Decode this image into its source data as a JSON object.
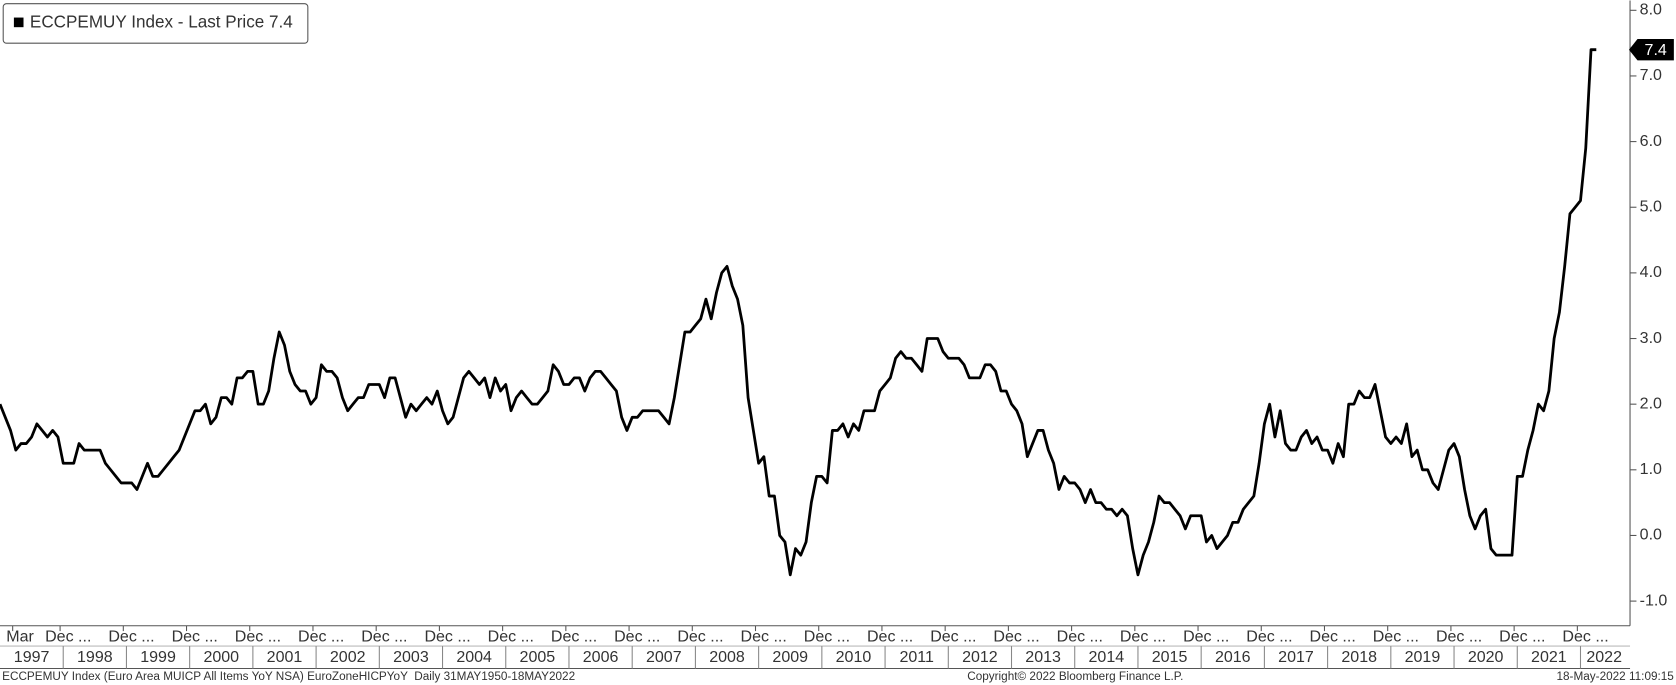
{
  "chart_data": {
    "type": "line",
    "series": [
      {
        "name": "ECCPEMUY Index - Last Price 7.4",
        "color": "#000000",
        "x": [
          "1997-01",
          "1997-02",
          "1997-03",
          "1997-04",
          "1997-05",
          "1997-06",
          "1997-07",
          "1997-08",
          "1997-09",
          "1997-10",
          "1997-11",
          "1997-12",
          "1998-01",
          "1998-02",
          "1998-03",
          "1998-04",
          "1998-05",
          "1998-06",
          "1998-07",
          "1998-08",
          "1998-09",
          "1998-10",
          "1998-11",
          "1998-12",
          "1999-01",
          "1999-02",
          "1999-03",
          "1999-04",
          "1999-05",
          "1999-06",
          "1999-07",
          "1999-08",
          "1999-09",
          "1999-10",
          "1999-11",
          "1999-12",
          "2000-01",
          "2000-02",
          "2000-03",
          "2000-04",
          "2000-05",
          "2000-06",
          "2000-07",
          "2000-08",
          "2000-09",
          "2000-10",
          "2000-11",
          "2000-12",
          "2001-01",
          "2001-02",
          "2001-03",
          "2001-04",
          "2001-05",
          "2001-06",
          "2001-07",
          "2001-08",
          "2001-09",
          "2001-10",
          "2001-11",
          "2001-12",
          "2002-01",
          "2002-02",
          "2002-03",
          "2002-04",
          "2002-05",
          "2002-06",
          "2002-07",
          "2002-08",
          "2002-09",
          "2002-10",
          "2002-11",
          "2002-12",
          "2003-01",
          "2003-02",
          "2003-03",
          "2003-04",
          "2003-05",
          "2003-06",
          "2003-07",
          "2003-08",
          "2003-09",
          "2003-10",
          "2003-11",
          "2003-12",
          "2004-01",
          "2004-02",
          "2004-03",
          "2004-04",
          "2004-05",
          "2004-06",
          "2004-07",
          "2004-08",
          "2004-09",
          "2004-10",
          "2004-11",
          "2004-12",
          "2005-01",
          "2005-02",
          "2005-03",
          "2005-04",
          "2005-05",
          "2005-06",
          "2005-07",
          "2005-08",
          "2005-09",
          "2005-10",
          "2005-11",
          "2005-12",
          "2006-01",
          "2006-02",
          "2006-03",
          "2006-04",
          "2006-05",
          "2006-06",
          "2006-07",
          "2006-08",
          "2006-09",
          "2006-10",
          "2006-11",
          "2006-12",
          "2007-01",
          "2007-02",
          "2007-03",
          "2007-04",
          "2007-05",
          "2007-06",
          "2007-07",
          "2007-08",
          "2007-09",
          "2007-10",
          "2007-11",
          "2007-12",
          "2008-01",
          "2008-02",
          "2008-03",
          "2008-04",
          "2008-05",
          "2008-06",
          "2008-07",
          "2008-08",
          "2008-09",
          "2008-10",
          "2008-11",
          "2008-12",
          "2009-01",
          "2009-02",
          "2009-03",
          "2009-04",
          "2009-05",
          "2009-06",
          "2009-07",
          "2009-08",
          "2009-09",
          "2009-10",
          "2009-11",
          "2009-12",
          "2010-01",
          "2010-02",
          "2010-03",
          "2010-04",
          "2010-05",
          "2010-06",
          "2010-07",
          "2010-08",
          "2010-09",
          "2010-10",
          "2010-11",
          "2010-12",
          "2011-01",
          "2011-02",
          "2011-03",
          "2011-04",
          "2011-05",
          "2011-06",
          "2011-07",
          "2011-08",
          "2011-09",
          "2011-10",
          "2011-11",
          "2011-12",
          "2012-01",
          "2012-02",
          "2012-03",
          "2012-04",
          "2012-05",
          "2012-06",
          "2012-07",
          "2012-08",
          "2012-09",
          "2012-10",
          "2012-11",
          "2012-12",
          "2013-01",
          "2013-02",
          "2013-03",
          "2013-04",
          "2013-05",
          "2013-06",
          "2013-07",
          "2013-08",
          "2013-09",
          "2013-10",
          "2013-11",
          "2013-12",
          "2014-01",
          "2014-02",
          "2014-03",
          "2014-04",
          "2014-05",
          "2014-06",
          "2014-07",
          "2014-08",
          "2014-09",
          "2014-10",
          "2014-11",
          "2014-12",
          "2015-01",
          "2015-02",
          "2015-03",
          "2015-04",
          "2015-05",
          "2015-06",
          "2015-07",
          "2015-08",
          "2015-09",
          "2015-10",
          "2015-11",
          "2015-12",
          "2016-01",
          "2016-02",
          "2016-03",
          "2016-04",
          "2016-05",
          "2016-06",
          "2016-07",
          "2016-08",
          "2016-09",
          "2016-10",
          "2016-11",
          "2016-12",
          "2017-01",
          "2017-02",
          "2017-03",
          "2017-04",
          "2017-05",
          "2017-06",
          "2017-07",
          "2017-08",
          "2017-09",
          "2017-10",
          "2017-11",
          "2017-12",
          "2018-01",
          "2018-02",
          "2018-03",
          "2018-04",
          "2018-05",
          "2018-06",
          "2018-07",
          "2018-08",
          "2018-09",
          "2018-10",
          "2018-11",
          "2018-12",
          "2019-01",
          "2019-02",
          "2019-03",
          "2019-04",
          "2019-05",
          "2019-06",
          "2019-07",
          "2019-08",
          "2019-09",
          "2019-10",
          "2019-11",
          "2019-12",
          "2020-01",
          "2020-02",
          "2020-03",
          "2020-04",
          "2020-05",
          "2020-06",
          "2020-07",
          "2020-08",
          "2020-09",
          "2020-10",
          "2020-11",
          "2020-12",
          "2021-01",
          "2021-02",
          "2021-03",
          "2021-04",
          "2021-05",
          "2021-06",
          "2021-07",
          "2021-08",
          "2021-09",
          "2021-10",
          "2021-11",
          "2021-12",
          "2022-01",
          "2022-02",
          "2022-03",
          "2022-04"
        ],
        "values": [
          2.0,
          1.8,
          1.6,
          1.3,
          1.4,
          1.4,
          1.5,
          1.7,
          1.6,
          1.5,
          1.6,
          1.5,
          1.1,
          1.1,
          1.1,
          1.4,
          1.3,
          1.3,
          1.3,
          1.3,
          1.1,
          1.0,
          0.9,
          0.8,
          0.8,
          0.8,
          0.7,
          0.9,
          1.1,
          0.9,
          0.9,
          1.0,
          1.1,
          1.2,
          1.3,
          1.5,
          1.7,
          1.9,
          1.9,
          2.0,
          1.7,
          1.8,
          2.1,
          2.1,
          2.0,
          2.4,
          2.4,
          2.5,
          2.5,
          2.0,
          2.0,
          2.2,
          2.7,
          3.1,
          2.9,
          2.5,
          2.3,
          2.2,
          2.2,
          2.0,
          2.1,
          2.6,
          2.5,
          2.5,
          2.4,
          2.1,
          1.9,
          2.0,
          2.1,
          2.1,
          2.3,
          2.3,
          2.3,
          2.1,
          2.4,
          2.4,
          2.1,
          1.8,
          2.0,
          1.9,
          2.0,
          2.1,
          2.0,
          2.2,
          1.9,
          1.7,
          1.8,
          2.1,
          2.4,
          2.5,
          2.4,
          2.3,
          2.4,
          2.1,
          2.4,
          2.2,
          2.3,
          1.9,
          2.1,
          2.2,
          2.1,
          2.0,
          2.0,
          2.1,
          2.2,
          2.6,
          2.5,
          2.3,
          2.3,
          2.4,
          2.4,
          2.2,
          2.4,
          2.5,
          2.5,
          2.4,
          2.3,
          2.2,
          1.8,
          1.6,
          1.8,
          1.8,
          1.9,
          1.9,
          1.9,
          1.9,
          1.8,
          1.7,
          2.1,
          2.6,
          3.1,
          3.1,
          3.2,
          3.3,
          3.6,
          3.3,
          3.7,
          4.0,
          4.1,
          3.8,
          3.6,
          3.2,
          2.1,
          1.6,
          1.1,
          1.2,
          0.6,
          0.6,
          0.0,
          -0.1,
          -0.6,
          -0.2,
          -0.3,
          -0.1,
          0.5,
          0.9,
          0.9,
          0.8,
          1.6,
          1.6,
          1.7,
          1.5,
          1.7,
          1.6,
          1.9,
          1.9,
          1.9,
          2.2,
          2.3,
          2.4,
          2.7,
          2.8,
          2.7,
          2.7,
          2.6,
          2.5,
          3.0,
          3.0,
          3.0,
          2.8,
          2.7,
          2.7,
          2.7,
          2.6,
          2.4,
          2.4,
          2.4,
          2.6,
          2.6,
          2.5,
          2.2,
          2.2,
          2.0,
          1.9,
          1.7,
          1.2,
          1.4,
          1.6,
          1.6,
          1.3,
          1.1,
          0.7,
          0.9,
          0.8,
          0.8,
          0.7,
          0.5,
          0.7,
          0.5,
          0.5,
          0.4,
          0.4,
          0.3,
          0.4,
          0.3,
          -0.2,
          -0.6,
          -0.3,
          -0.1,
          0.2,
          0.6,
          0.5,
          0.5,
          0.4,
          0.3,
          0.1,
          0.3,
          0.3,
          0.3,
          -0.1,
          0.0,
          -0.2,
          -0.1,
          0.0,
          0.2,
          0.2,
          0.4,
          0.5,
          0.6,
          1.1,
          1.7,
          2.0,
          1.5,
          1.9,
          1.4,
          1.3,
          1.3,
          1.5,
          1.6,
          1.4,
          1.5,
          1.3,
          1.3,
          1.1,
          1.4,
          1.2,
          2.0,
          2.0,
          2.2,
          2.1,
          2.1,
          2.3,
          1.9,
          1.5,
          1.4,
          1.5,
          1.4,
          1.7,
          1.2,
          1.3,
          1.0,
          1.0,
          0.8,
          0.7,
          1.0,
          1.3,
          1.4,
          1.2,
          0.7,
          0.3,
          0.1,
          0.3,
          0.4,
          -0.2,
          -0.3,
          -0.3,
          -0.3,
          -0.3,
          0.9,
          0.9,
          1.3,
          1.6,
          2.0,
          1.9,
          2.2,
          3.0,
          3.4,
          4.1,
          4.9,
          5.0,
          5.1,
          5.9,
          7.4,
          7.4
        ]
      }
    ],
    "last_price": {
      "value": 7.4,
      "label": "7.4"
    },
    "xlim": [
      "1997-01",
      "2022-10"
    ],
    "xticks": [
      {
        "value": "1997-03",
        "label": "Mar"
      },
      {
        "value": "1997-12",
        "label": "Dec ..."
      },
      {
        "value": "1998-12",
        "label": "Dec ..."
      },
      {
        "value": "1999-12",
        "label": "Dec ..."
      },
      {
        "value": "2000-12",
        "label": "Dec ..."
      },
      {
        "value": "2001-12",
        "label": "Dec ..."
      },
      {
        "value": "2002-12",
        "label": "Dec ..."
      },
      {
        "value": "2003-12",
        "label": "Dec ..."
      },
      {
        "value": "2004-12",
        "label": "Dec ..."
      },
      {
        "value": "2005-12",
        "label": "Dec ..."
      },
      {
        "value": "2006-12",
        "label": "Dec ..."
      },
      {
        "value": "2007-12",
        "label": "Dec ..."
      },
      {
        "value": "2008-12",
        "label": "Dec ..."
      },
      {
        "value": "2009-12",
        "label": "Dec ..."
      },
      {
        "value": "2010-12",
        "label": "Dec ..."
      },
      {
        "value": "2011-12",
        "label": "Dec ..."
      },
      {
        "value": "2012-12",
        "label": "Dec ..."
      },
      {
        "value": "2013-12",
        "label": "Dec ..."
      },
      {
        "value": "2014-12",
        "label": "Dec ..."
      },
      {
        "value": "2015-12",
        "label": "Dec ..."
      },
      {
        "value": "2016-12",
        "label": "Dec ..."
      },
      {
        "value": "2017-12",
        "label": "Dec ..."
      },
      {
        "value": "2018-12",
        "label": "Dec ..."
      },
      {
        "value": "2019-12",
        "label": "Dec ..."
      },
      {
        "value": "2020-12",
        "label": "Dec ..."
      },
      {
        "value": "2021-12",
        "label": "Dec ..."
      }
    ],
    "year_labels": [
      "1997",
      "1998",
      "1999",
      "2000",
      "2001",
      "2002",
      "2003",
      "2004",
      "2005",
      "2006",
      "2007",
      "2008",
      "2009",
      "2010",
      "2011",
      "2012",
      "2013",
      "2014",
      "2015",
      "2016",
      "2017",
      "2018",
      "2019",
      "2020",
      "2021",
      "2022"
    ],
    "ylim": [
      -1.4,
      8.15
    ],
    "yticks": [
      {
        "value": -1,
        "label": "-1.0"
      },
      {
        "value": 0,
        "label": "0.0"
      },
      {
        "value": 1,
        "label": "1.0"
      },
      {
        "value": 2,
        "label": "2.0"
      },
      {
        "value": 3,
        "label": "3.0"
      },
      {
        "value": 4,
        "label": "4.0"
      },
      {
        "value": 5,
        "label": "5.0"
      },
      {
        "value": 6,
        "label": "6.0"
      },
      {
        "value": 7,
        "label": "7.0"
      },
      {
        "value": 8,
        "label": "8.0"
      }
    ],
    "grid": false,
    "legend_position": "top-left",
    "footer": {
      "left": "ECCPEMUY Index (Euro Area MUICP All Items YoY NSA) EuroZoneHICPYoY  Daily 31MAY1950-18MAY2022",
      "center": "Copyright© 2022 Bloomberg Finance L.P.",
      "right": "18-May-2022 11:09:15"
    }
  }
}
